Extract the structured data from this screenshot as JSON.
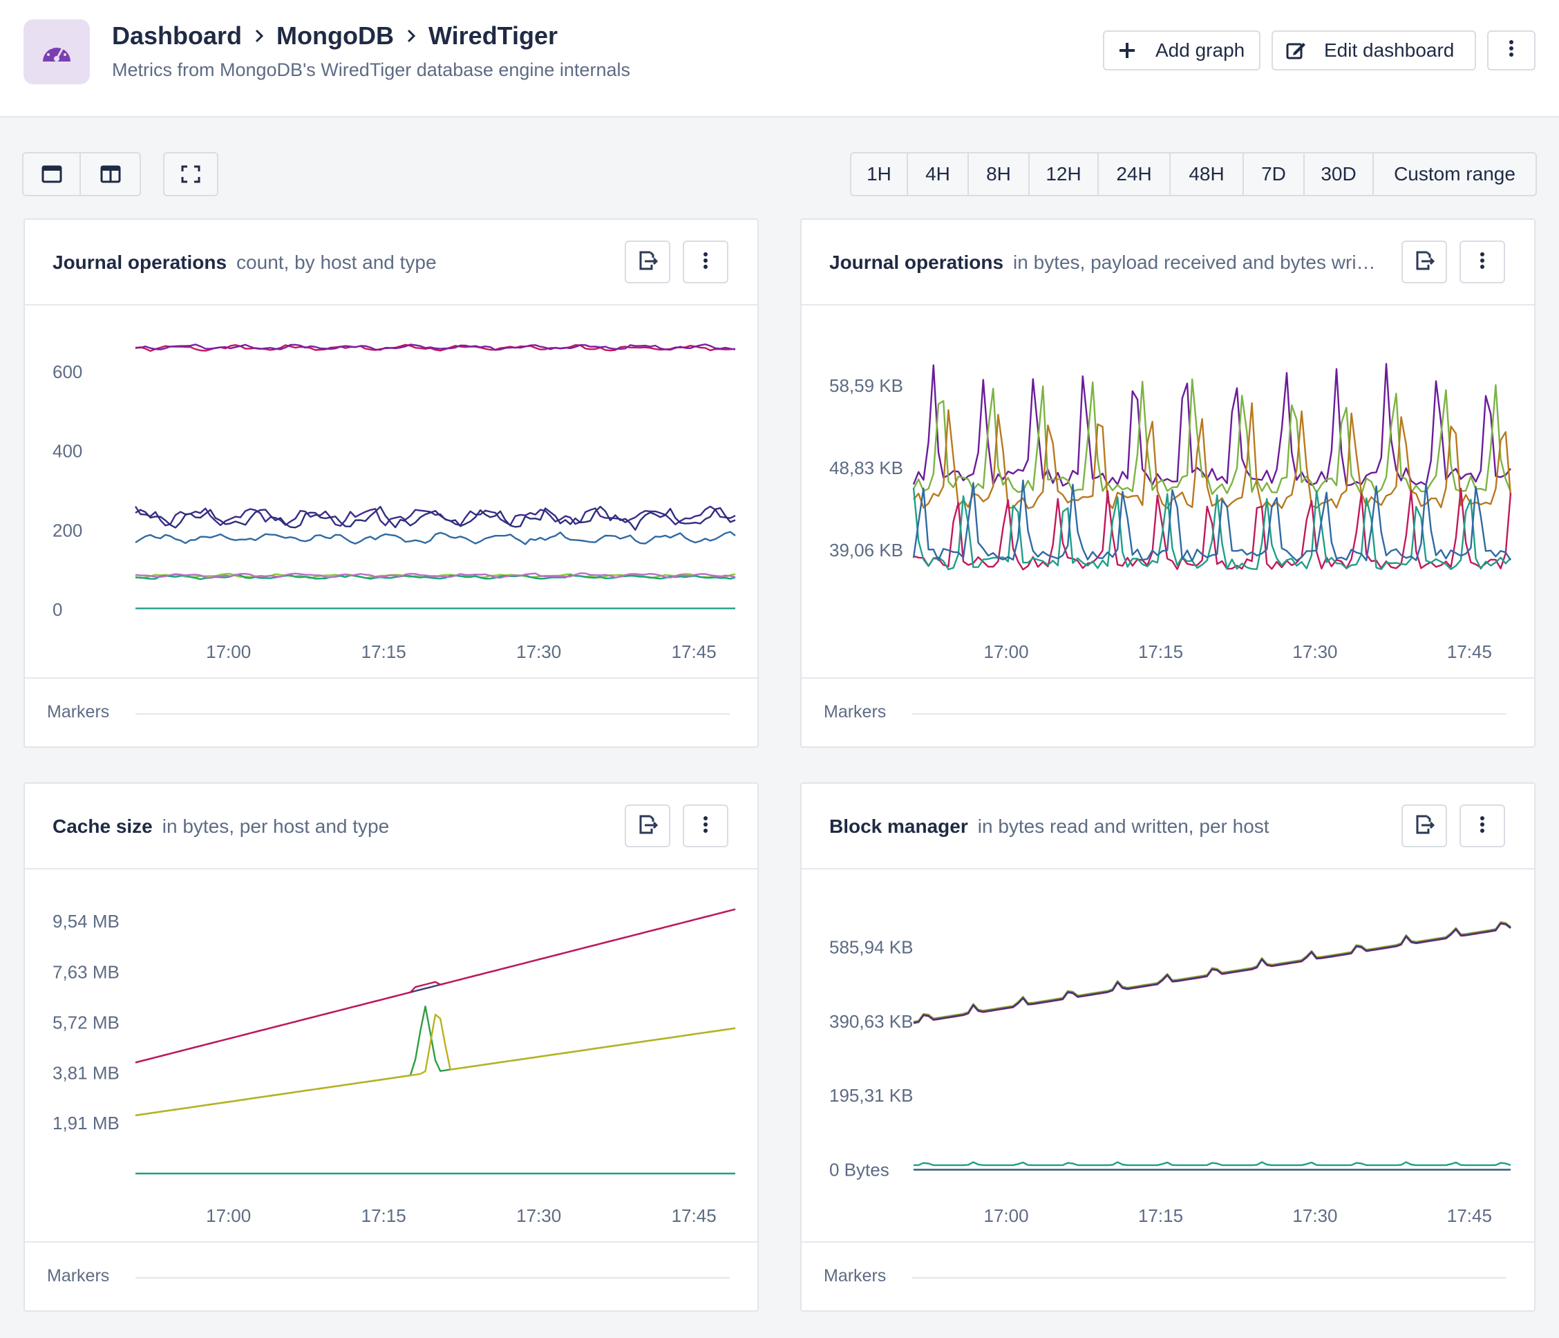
{
  "header": {
    "breadcrumb": [
      "Dashboard",
      "MongoDB",
      "WiredTiger"
    ],
    "subtitle": "Metrics from MongoDB's WiredTiger database engine internals",
    "add_graph_label": "Add graph",
    "edit_dashboard_label": "Edit dashboard",
    "icon": "speedometer-icon"
  },
  "toolbar": {
    "layout_icons": [
      "single-column-icon",
      "two-column-icon",
      "fullscreen-icon"
    ],
    "time_ranges": [
      "1H",
      "4H",
      "8H",
      "12H",
      "24H",
      "48H",
      "7D",
      "30D",
      "Custom range"
    ]
  },
  "panels": [
    {
      "title": "Journal operations",
      "description": "count, by host and type",
      "markers_label": "Markers"
    },
    {
      "title": "Journal operations",
      "description": "in bytes, payload received and bytes wri…",
      "markers_label": "Markers"
    },
    {
      "title": "Cache size",
      "description": "in bytes, per host and type",
      "markers_label": "Markers"
    },
    {
      "title": "Block manager",
      "description": "in bytes read and written, per host",
      "markers_label": "Markers"
    }
  ],
  "chart_data": [
    {
      "type": "line",
      "x_ticks": [
        "17:00",
        "17:15",
        "17:30",
        "17:45"
      ],
      "y_ticks": [
        "0",
        "200",
        "400",
        "600"
      ],
      "ylim": [
        0,
        680
      ],
      "x_range_minutes": [
        0,
        58
      ],
      "series": [
        {
          "color": "#c2185b",
          "base": 660,
          "amp": 8,
          "seed": 1
        },
        {
          "color": "#7b1fa2",
          "base": 662,
          "amp": 8,
          "seed": 2
        },
        {
          "color": "#3f2a8c",
          "base": 235,
          "amp": 28,
          "seed": 3
        },
        {
          "color": "#2c2f7a",
          "base": 230,
          "amp": 30,
          "seed": 4
        },
        {
          "color": "#2f6aa3",
          "base": 180,
          "amp": 16,
          "seed": 5
        },
        {
          "color": "#8cc63f",
          "base": 85,
          "amp": 6,
          "seed": 6
        },
        {
          "color": "#1aa37a",
          "base": 82,
          "amp": 6,
          "seed": 7
        },
        {
          "color": "#b86fc4",
          "base": 86,
          "amp": 6,
          "seed": 8
        },
        {
          "color": "#1f9e89",
          "base": 3,
          "amp": 0,
          "seed": 9
        }
      ]
    },
    {
      "type": "line",
      "x_ticks": [
        "17:00",
        "17:15",
        "17:30",
        "17:45"
      ],
      "y_ticks": [
        "39,06 KB",
        "48,83 KB",
        "58,59 KB"
      ],
      "ylim": [
        32,
        64
      ],
      "x_range_minutes": [
        0,
        58
      ],
      "series": [
        {
          "color": "#6a1b9a",
          "base": 50,
          "amp": 9,
          "seed": 11
        },
        {
          "color": "#7cb342",
          "base": 49,
          "amp": 9,
          "seed": 12
        },
        {
          "color": "#b7791f",
          "base": 47,
          "amp": 8,
          "seed": 13
        },
        {
          "color": "#c2185b",
          "base": 39,
          "amp": 6,
          "seed": 14
        },
        {
          "color": "#1f9e89",
          "base": 39,
          "amp": 6,
          "seed": 15
        },
        {
          "color": "#2f6aa3",
          "base": 40,
          "amp": 6,
          "seed": 16
        }
      ]
    },
    {
      "type": "line",
      "x_ticks": [
        "17:00",
        "17:15",
        "17:30",
        "17:45"
      ],
      "y_ticks": [
        "1,91 MB",
        "3,81 MB",
        "5,72 MB",
        "7,63 MB",
        "9,54 MB"
      ],
      "ylim": [
        0,
        10.2
      ],
      "x_range_minutes": [
        0,
        58
      ],
      "series": [
        {
          "color": "#3f3a78",
          "start": 4.2,
          "end": 10.0
        },
        {
          "color": "#c2185b",
          "start": 4.2,
          "end": 10.0,
          "bump_at": 28
        },
        {
          "color": "#2e9e3f",
          "start": 2.2,
          "end": 5.5,
          "spike_at": 28
        },
        {
          "color": "#b9b21d",
          "start": 2.2,
          "end": 5.5,
          "spike_at": 29.2
        },
        {
          "color": "#1f9e89",
          "start": 0.0,
          "end": 0.0
        }
      ]
    },
    {
      "type": "line",
      "x_ticks": [
        "17:00",
        "17:15",
        "17:30",
        "17:45"
      ],
      "y_ticks": [
        "0 Bytes",
        "195,31 KB",
        "390,63 KB",
        "585,94 KB"
      ],
      "ylim": [
        -10,
        700
      ],
      "x_range_minutes": [
        0,
        58
      ],
      "series": [
        {
          "color": "#7cb342",
          "start": 390,
          "end": 640
        },
        {
          "color": "#b7791f",
          "start": 388,
          "end": 638
        },
        {
          "color": "#c2185b",
          "start": 386,
          "end": 636
        },
        {
          "color": "#3f3a78",
          "start": 387,
          "end": 637
        },
        {
          "color": "#1f9e89",
          "start": 12,
          "end": 12
        },
        {
          "color": "#2f5f7a",
          "start": 0,
          "end": 0
        }
      ]
    }
  ]
}
